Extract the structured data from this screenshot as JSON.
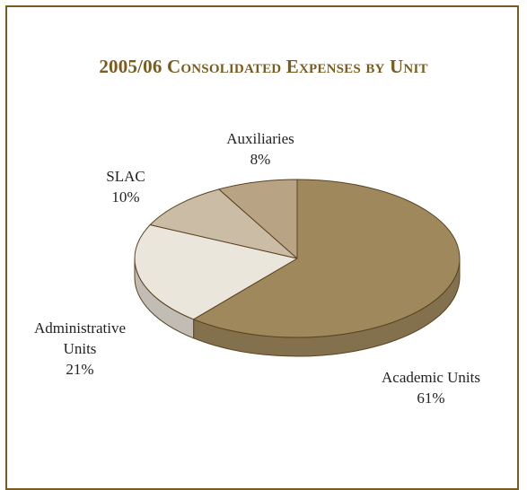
{
  "chart_data": {
    "type": "pie",
    "title": "2005/06 Consolidated Expenses by Unit",
    "title_display": {
      "year": "2005/06",
      "rest": "Consolidated Expenses by Unit"
    },
    "unit": "%",
    "slices": [
      {
        "label": "Academic Units",
        "label_lines": [
          "Academic Units"
        ],
        "value": 61,
        "display": "61%",
        "color": "#a0885d"
      },
      {
        "label": "Administrative Units",
        "label_lines": [
          "Administrative",
          "Units"
        ],
        "value": 21,
        "display": "21%",
        "color": "#ebe6dc"
      },
      {
        "label": "SLAC",
        "label_lines": [
          "SLAC"
        ],
        "value": 10,
        "display": "10%",
        "color": "#cbbda5"
      },
      {
        "label": "Auxiliaries",
        "label_lines": [
          "Auxiliaries"
        ],
        "value": 8,
        "display": "8%",
        "color": "#b8a385"
      }
    ],
    "style": "3d-tilted",
    "border_color": "#7a5c1f"
  }
}
